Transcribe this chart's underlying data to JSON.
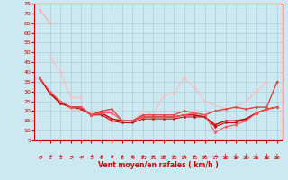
{
  "bg_color": "#cce8f0",
  "grid_color": "#aaccdd",
  "xlabel": "Vent moyen/en rafales ( km/h )",
  "xlabel_color": "#cc0000",
  "tick_color": "#cc0000",
  "xmin": 0,
  "xmax": 23,
  "ymin": 5,
  "ymax": 75,
  "yticks": [
    5,
    10,
    15,
    20,
    25,
    30,
    35,
    40,
    45,
    50,
    55,
    60,
    65,
    70,
    75
  ],
  "xticks": [
    0,
    1,
    2,
    3,
    4,
    5,
    6,
    7,
    8,
    9,
    10,
    11,
    12,
    13,
    14,
    15,
    16,
    17,
    18,
    19,
    20,
    21,
    22,
    23
  ],
  "lines": [
    {
      "x": [
        0,
        1
      ],
      "y": [
        72,
        65
      ],
      "color": "#ffaaaa",
      "lw": 0.8,
      "marker": "D",
      "ms": 1.5
    },
    {
      "x": [
        1,
        2,
        3,
        4
      ],
      "y": [
        48,
        40,
        27,
        27
      ],
      "color": "#ffbbbb",
      "lw": 0.8,
      "marker": "D",
      "ms": 1.5
    },
    {
      "x": [
        0,
        1,
        2,
        3,
        4,
        5,
        6,
        7,
        8,
        9,
        10,
        11,
        12,
        13,
        14,
        15,
        16,
        18,
        19,
        20,
        21,
        22
      ],
      "y": [
        37,
        30,
        25,
        21,
        20,
        19,
        19,
        14,
        15,
        15,
        20,
        18,
        28,
        29,
        37,
        32,
        25,
        21,
        22,
        25,
        30,
        35
      ],
      "color": "#ffbbbb",
      "lw": 0.8,
      "marker": "D",
      "ms": 1.5
    },
    {
      "x": [
        0,
        1,
        2,
        3,
        4,
        5,
        6,
        7,
        8,
        9,
        10,
        11,
        12,
        13,
        14,
        15,
        16,
        17,
        18,
        19,
        20,
        21,
        22,
        23
      ],
      "y": [
        37,
        29,
        25,
        22,
        22,
        18,
        20,
        21,
        15,
        15,
        18,
        18,
        18,
        18,
        20,
        19,
        18,
        20,
        21,
        22,
        21,
        22,
        22,
        35
      ],
      "color": "#dd4444",
      "lw": 1.0,
      "marker": "D",
      "ms": 1.5
    },
    {
      "x": [
        0,
        1,
        2,
        3,
        4,
        5,
        6,
        7,
        8,
        9,
        10,
        11,
        12,
        13,
        14,
        15,
        16,
        17,
        18,
        19,
        20,
        21,
        22,
        23
      ],
      "y": [
        37,
        29,
        24,
        22,
        22,
        18,
        19,
        16,
        15,
        15,
        17,
        17,
        17,
        17,
        18,
        18,
        17,
        13,
        15,
        15,
        16,
        19,
        21,
        22
      ],
      "color": "#cc0000",
      "lw": 1.0,
      "marker": "D",
      "ms": 1.5
    },
    {
      "x": [
        0,
        1,
        2,
        3,
        4,
        5,
        6,
        7,
        8,
        9,
        10,
        11,
        12,
        13,
        14,
        15,
        16,
        17,
        18,
        19,
        20,
        21,
        22,
        23
      ],
      "y": [
        37,
        29,
        24,
        22,
        21,
        18,
        18,
        15,
        14,
        14,
        16,
        16,
        16,
        16,
        17,
        17,
        17,
        12,
        14,
        14,
        16,
        19,
        21,
        22
      ],
      "color": "#bb1111",
      "lw": 0.8,
      "marker": "D",
      "ms": 1.5
    },
    {
      "x": [
        0,
        1,
        2,
        3,
        4,
        5,
        6,
        7,
        8,
        9,
        10,
        11,
        12,
        13,
        14,
        15,
        16,
        17,
        18,
        19,
        20,
        21,
        22,
        23
      ],
      "y": [
        37,
        30,
        25,
        22,
        22,
        18,
        19,
        19,
        15,
        15,
        17,
        17,
        17,
        17,
        18,
        19,
        18,
        9,
        12,
        13,
        15,
        19,
        21,
        22
      ],
      "color": "#ff5555",
      "lw": 0.8,
      "marker": "D",
      "ms": 1.5
    }
  ],
  "arrow_angles": [
    180,
    195,
    210,
    180,
    180,
    200,
    225,
    225,
    225,
    225,
    225,
    225,
    225,
    225,
    225,
    225,
    225,
    200,
    270,
    270,
    270,
    270,
    270,
    270
  ]
}
